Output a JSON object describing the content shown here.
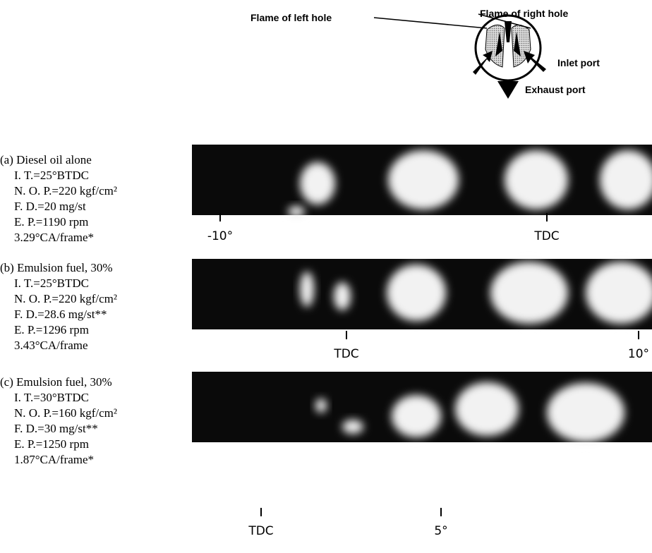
{
  "diagram": {
    "labels": {
      "left_flame": "Flame of left hole",
      "right_flame": "Flame of right hole",
      "inlet": "Inlet port",
      "exhaust": "Exhaust port"
    }
  },
  "panels": [
    {
      "lines": [
        "(a) Diesel oil alone",
        "I. T.=25°BTDC",
        "N. O. P.=220 kgf/cm²",
        "F. D.=20 mg/st",
        "E. P.=1190 rpm",
        "3.29°CA/frame*"
      ],
      "ticks": [
        "-10°",
        "TDC"
      ]
    },
    {
      "lines": [
        "(b) Emulsion fuel, 30%",
        "I. T.=25°BTDC",
        "N. O. P.=220 kgf/cm²",
        "F. D.=28.6 mg/st**",
        "E. P.=1296 rpm",
        "3.43°CA/frame"
      ],
      "ticks": [
        "TDC",
        "10°"
      ]
    },
    {
      "lines": [
        "(c) Emulsion fuel, 30%",
        "I. T.=30°BTDC",
        "N. O. P.=160 kgf/cm²",
        "F. D.=30 mg/st**",
        "E. P.=1250 rpm",
        "1.87°CA/frame*"
      ],
      "ticks": [
        "TDC",
        "5°"
      ]
    }
  ]
}
